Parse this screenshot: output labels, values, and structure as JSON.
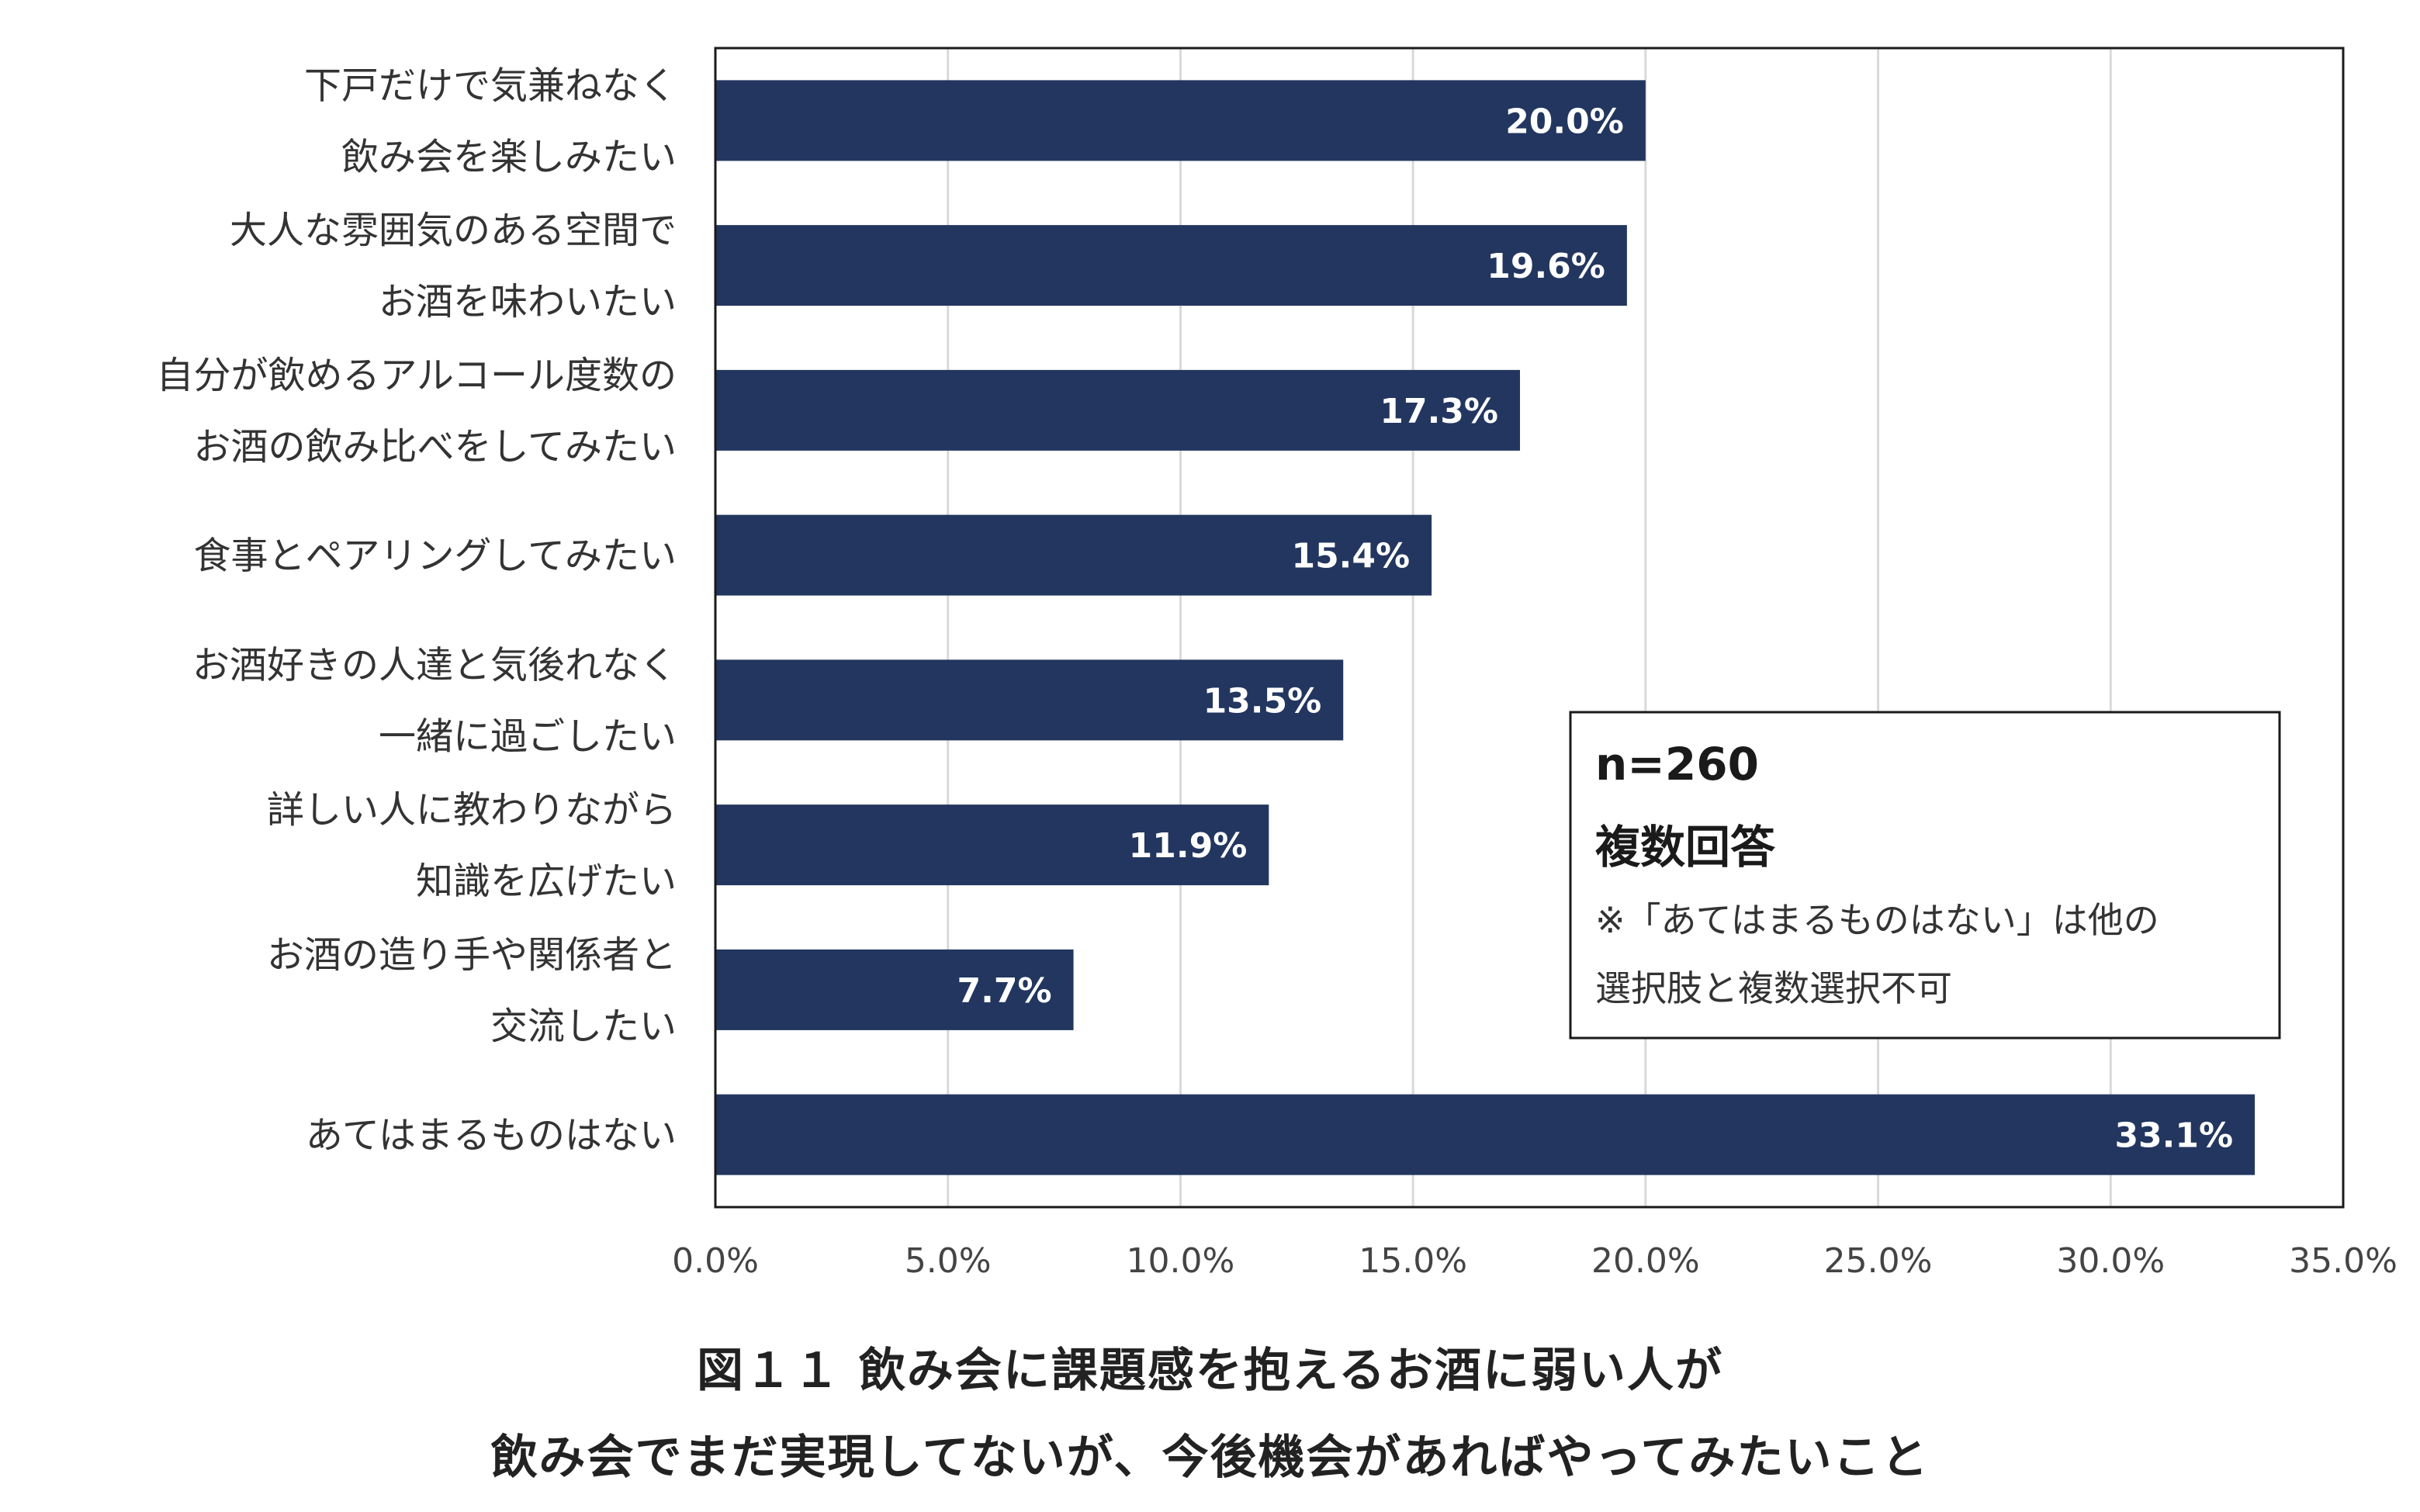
{
  "chart_data": {
    "type": "bar",
    "orientation": "horizontal",
    "categories": [
      [
        "下戸だけで気兼ねなく",
        "飲み会を楽しみたい"
      ],
      [
        "大人な雰囲気のある空間で",
        "お酒を味わいたい"
      ],
      [
        "自分が飲めるアルコール度数の",
        "お酒の飲み比べをしてみたい"
      ],
      [
        "食事とペアリングしてみたい"
      ],
      [
        "お酒好きの人達と気後れなく",
        "一緒に過ごしたい"
      ],
      [
        "詳しい人に教わりながら",
        "知識を広げたい"
      ],
      [
        "お酒の造り手や関係者と",
        "交流したい"
      ],
      [
        "あてはまるものはない"
      ]
    ],
    "values": [
      20.0,
      19.6,
      17.3,
      15.4,
      13.5,
      11.9,
      7.7,
      33.1
    ],
    "value_labels": [
      "20.0%",
      "19.6%",
      "17.3%",
      "15.4%",
      "13.5%",
      "11.9%",
      "7.7%",
      "33.1%"
    ],
    "xlim": [
      0,
      35
    ],
    "xticks": [
      "0.0%",
      "5.0%",
      "10.0%",
      "15.0%",
      "20.0%",
      "25.0%",
      "30.0%",
      "35.0%"
    ],
    "grid": "vertical",
    "bar_color": "#22365f",
    "value_label_color": "#ffffff",
    "legend": null,
    "annotation": {
      "position": "bottom-right",
      "lines": [
        "n=260",
        "複数回答",
        "※「あてはまるものはない」は他の",
        "選択肢と複数選択不可"
      ]
    },
    "title": [
      "図１１ 飲み会に課題感を抱えるお酒に弱い人が",
      "飲み会でまだ実現してないが、今後機会があればやってみたいこと"
    ]
  }
}
